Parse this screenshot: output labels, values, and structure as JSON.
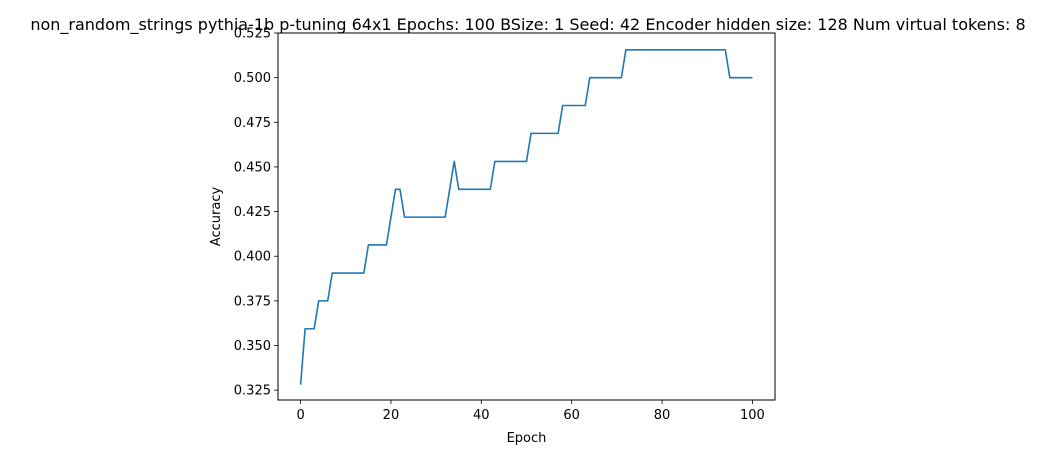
{
  "chart_data": {
    "type": "line",
    "title": "non_random_strings pythia-1b p-tuning 64x1 Epochs: 100 BSize: 1 Seed: 42 Encoder hidden size: 128 Num virtual tokens: 8",
    "xlabel": "Epoch",
    "ylabel": "Accuracy",
    "xlim": [
      -5,
      105
    ],
    "ylim": [
      0.3195,
      0.525
    ],
    "xticks": [
      "0",
      "20",
      "40",
      "60",
      "80",
      "100"
    ],
    "yticks": [
      "0.325",
      "0.350",
      "0.375",
      "0.400",
      "0.425",
      "0.450",
      "0.475",
      "0.500",
      "0.525"
    ],
    "xtick_values": [
      0,
      20,
      40,
      60,
      80,
      100
    ],
    "ytick_values": [
      0.325,
      0.35,
      0.375,
      0.4,
      0.425,
      0.45,
      0.475,
      0.5,
      0.525
    ],
    "grid": false,
    "series": [
      {
        "color": "#1f77b4",
        "x": [
          0,
          1,
          2,
          3,
          4,
          5,
          6,
          7,
          8,
          9,
          10,
          11,
          12,
          13,
          14,
          15,
          16,
          17,
          18,
          19,
          20,
          21,
          22,
          23,
          24,
          25,
          26,
          27,
          28,
          29,
          30,
          31,
          32,
          33,
          34,
          35,
          36,
          37,
          38,
          39,
          40,
          41,
          42,
          43,
          44,
          45,
          46,
          47,
          48,
          49,
          50,
          51,
          52,
          53,
          54,
          55,
          56,
          57,
          58,
          59,
          60,
          61,
          62,
          63,
          64,
          65,
          66,
          67,
          68,
          69,
          70,
          71,
          72,
          73,
          74,
          75,
          76,
          77,
          78,
          79,
          80,
          81,
          82,
          83,
          84,
          85,
          86,
          87,
          88,
          89,
          90,
          91,
          92,
          93,
          94,
          95,
          96,
          97,
          98,
          99,
          100
        ],
        "values": [
          0.3281,
          0.3594,
          0.3594,
          0.3594,
          0.375,
          0.375,
          0.375,
          0.3906,
          0.3906,
          0.3906,
          0.3906,
          0.3906,
          0.3906,
          0.3906,
          0.3906,
          0.4063,
          0.4063,
          0.4063,
          0.4063,
          0.4063,
          0.4219,
          0.4375,
          0.4375,
          0.4219,
          0.4219,
          0.4219,
          0.4219,
          0.4219,
          0.4219,
          0.4219,
          0.4219,
          0.4219,
          0.4219,
          0.4375,
          0.4531,
          0.4375,
          0.4375,
          0.4375,
          0.4375,
          0.4375,
          0.4375,
          0.4375,
          0.4375,
          0.4531,
          0.4531,
          0.4531,
          0.4531,
          0.4531,
          0.4531,
          0.4531,
          0.4531,
          0.4688,
          0.4688,
          0.4688,
          0.4688,
          0.4688,
          0.4688,
          0.4688,
          0.4844,
          0.4844,
          0.4844,
          0.4844,
          0.4844,
          0.4844,
          0.5,
          0.5,
          0.5,
          0.5,
          0.5,
          0.5,
          0.5,
          0.5,
          0.5156,
          0.5156,
          0.5156,
          0.5156,
          0.5156,
          0.5156,
          0.5156,
          0.5156,
          0.5156,
          0.5156,
          0.5156,
          0.5156,
          0.5156,
          0.5156,
          0.5156,
          0.5156,
          0.5156,
          0.5156,
          0.5156,
          0.5156,
          0.5156,
          0.5156,
          0.5156,
          0.5,
          0.5,
          0.5,
          0.5,
          0.5,
          0.5
        ]
      }
    ]
  }
}
